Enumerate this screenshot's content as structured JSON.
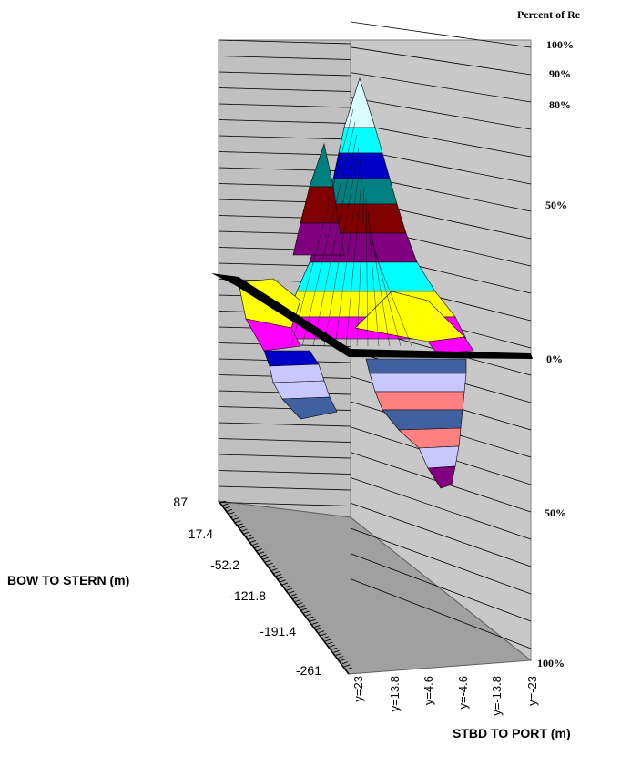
{
  "chart_data": {
    "type": "surface3d",
    "title": "Percent of Re",
    "xlabel": "STBD TO PORT (m)",
    "ylabel": "BOW TO STERN (m)",
    "x_ticks": [
      "y=23",
      "y=13.8",
      "y=4.6",
      "y=-4.6",
      "y=-13.8",
      "y=-23"
    ],
    "y_ticks": [
      "87",
      "17.4",
      "-52.2",
      "-121.8",
      "-191.4",
      "-261"
    ],
    "z_ticks_upper": [
      "100%",
      "90%",
      "80%",
      "50%",
      "0%"
    ],
    "z_ticks_lower": [
      "50%",
      "100%"
    ],
    "z_range": [
      -100,
      100
    ],
    "grid": true,
    "band_colors": [
      "#d7fbff",
      "#00ffff",
      "#0000c8",
      "#008080",
      "#800000",
      "#800080",
      "#ff00ff",
      "#ffff00",
      "#c8c8ff",
      "#4060a0",
      "#ff8080",
      "#0070c0"
    ]
  }
}
